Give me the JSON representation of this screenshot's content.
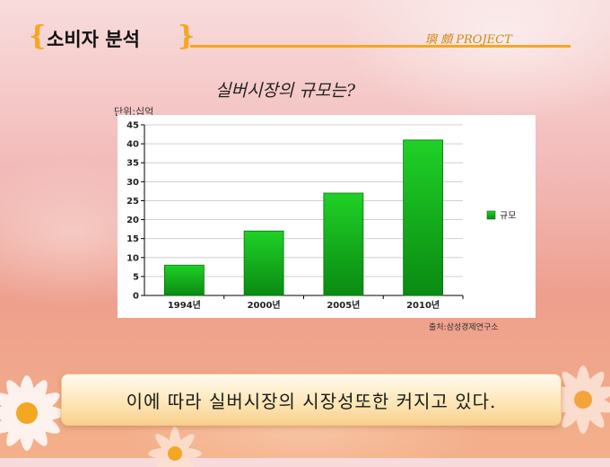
{
  "header": {
    "title": "소비자 분석",
    "project_label": "璵 頗 PROJECT",
    "open_brace": "{",
    "close_brace": "}"
  },
  "slide": {
    "subtitle": "실버시장의 규모는?",
    "unit_label": "단위:십억",
    "source_label": "출처:삼성경제연구소",
    "conclusion": "이에 따라 실버시장의 시장성또한 커지고 있다."
  },
  "colors": {
    "accent": "#f5a623",
    "bar": "#13b81b",
    "bar_dark": "#0a7d12"
  },
  "chart_data": {
    "type": "bar",
    "categories": [
      "1994년",
      "2000년",
      "2005년",
      "2010년"
    ],
    "series": [
      {
        "name": "규모",
        "values": [
          8,
          17,
          27,
          41
        ]
      }
    ],
    "ylim": [
      0,
      45
    ],
    "yticks": [
      0,
      5,
      10,
      15,
      20,
      25,
      30,
      35,
      40,
      45
    ],
    "grid": true,
    "legend": "right"
  }
}
